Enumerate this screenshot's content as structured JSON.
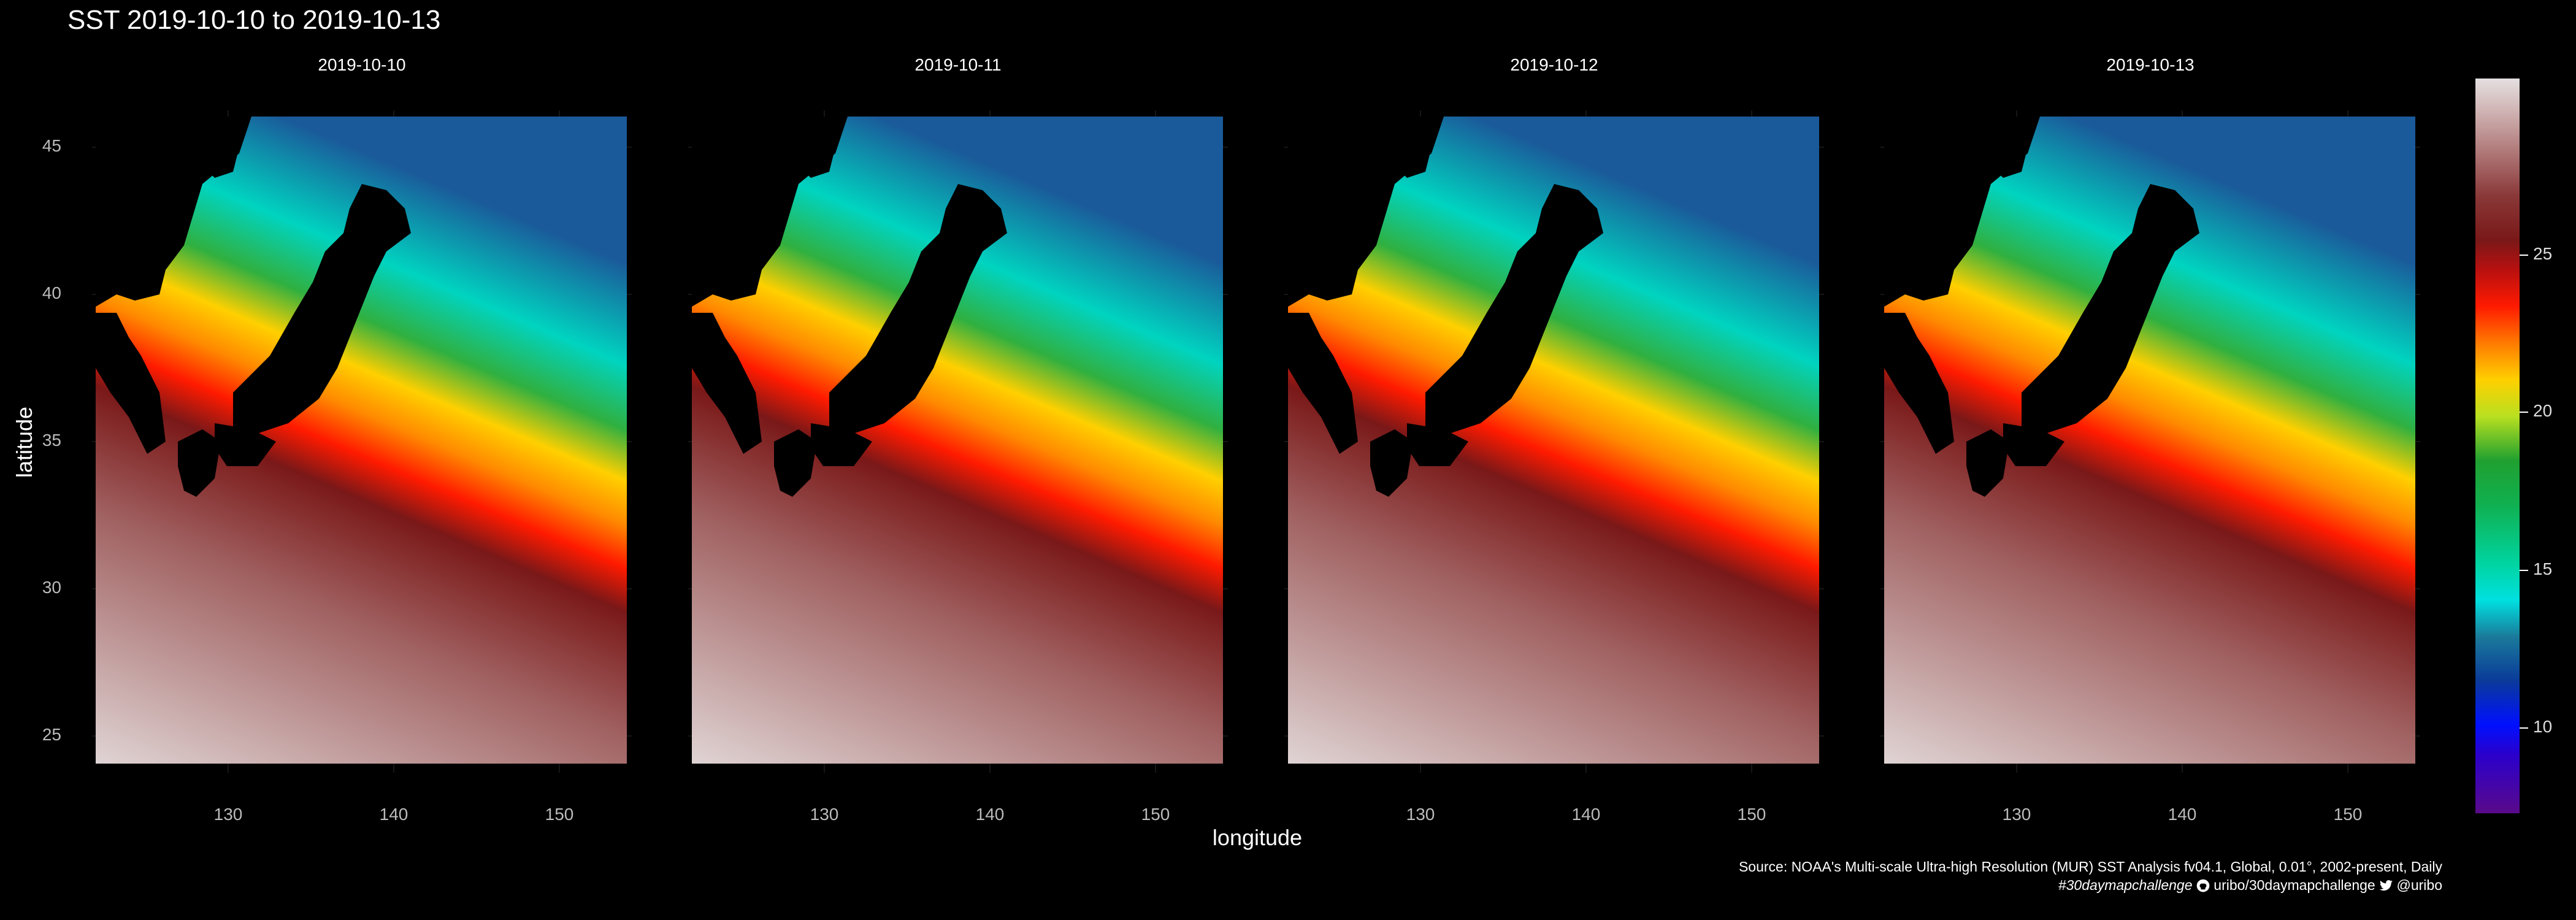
{
  "title": "SST 2019-10-10 to 2019-10-13",
  "x_axis": {
    "label": "longitude",
    "ticks": [
      "130",
      "140",
      "150"
    ]
  },
  "y_axis": {
    "label": "latitude",
    "ticks": [
      "45",
      "40",
      "35",
      "30",
      "25"
    ]
  },
  "panels": [
    {
      "date": "2019-10-10"
    },
    {
      "date": "2019-10-11"
    },
    {
      "date": "2019-10-12"
    },
    {
      "date": "2019-10-13"
    }
  ],
  "legend": {
    "ticks": [
      "25",
      "20",
      "15",
      "10"
    ]
  },
  "caption": {
    "source": "Source: NOAA's Multi-scale Ultra-high Resolution (MUR) SST Analysis fv04.1, Global, 0.01°, 2002-present, Daily",
    "hashtag": "#30daymapchallenge",
    "github": "uribo/30daymapchallenge",
    "twitter": "@uribo"
  },
  "colors": {
    "background": "#000000",
    "warm": "#c8a0a0",
    "hot": "#ff1a00",
    "mid": "#ffd000",
    "cool": "#10b050",
    "cold": "#00e0e0",
    "land": "#000000"
  },
  "icons": [
    "github-icon",
    "twitter-icon"
  ]
}
